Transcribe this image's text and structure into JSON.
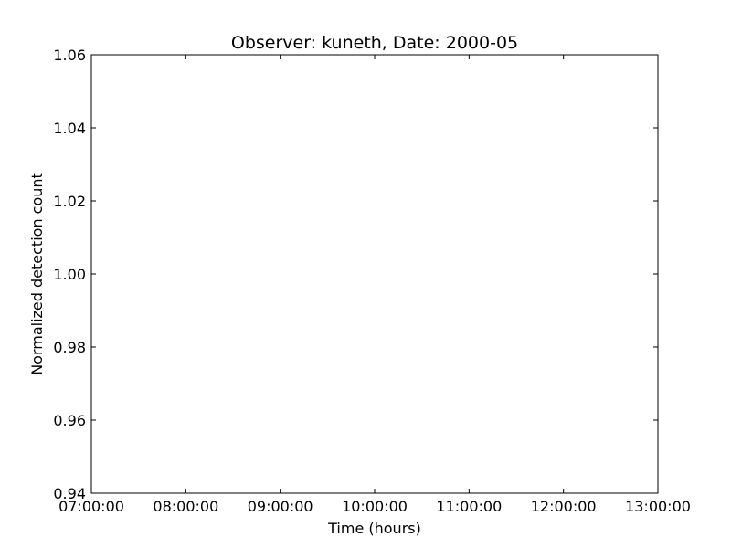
{
  "chart_data": {
    "type": "line",
    "title": "Observer: kuneth, Date: 2000-05",
    "xlabel": "Time (hours)",
    "ylabel": "Normalized detection count",
    "x_ticks": [
      "07:00:00",
      "08:00:00",
      "09:00:00",
      "10:00:00",
      "11:00:00",
      "12:00:00",
      "13:00:00"
    ],
    "y_ticks": [
      "0.94",
      "0.96",
      "0.98",
      "1.00",
      "1.02",
      "1.04",
      "1.06"
    ],
    "xlim": [
      "07:00:00",
      "13:00:00"
    ],
    "ylim": [
      0.94,
      1.06
    ],
    "series": [],
    "grid": false,
    "legend": false
  }
}
